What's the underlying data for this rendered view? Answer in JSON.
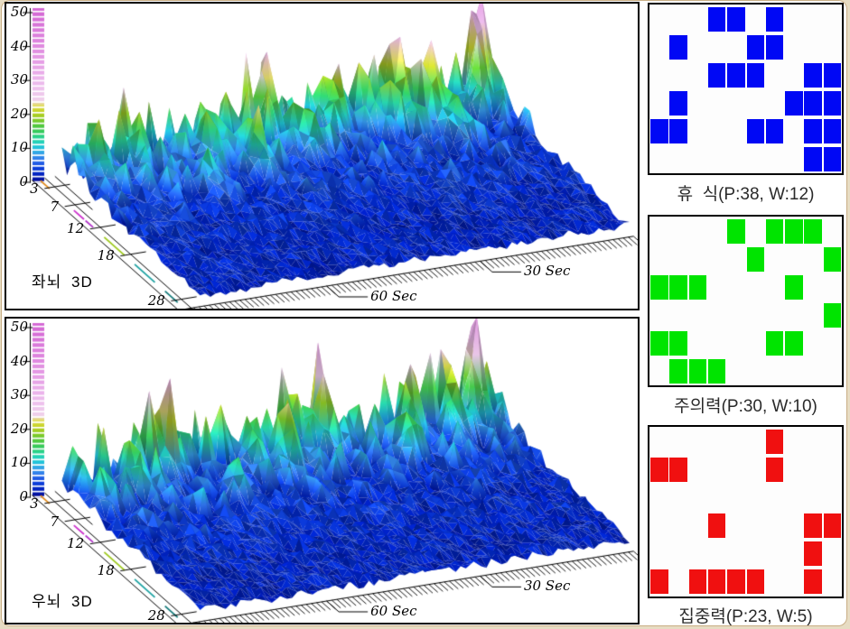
{
  "window": {
    "background": "#ffffff",
    "frame_color": "#e7dcc3",
    "frame_edge_color": "#c9ae85"
  },
  "colormap": [
    [
      0,
      "#000890"
    ],
    [
      2.5,
      "#0024C4"
    ],
    [
      4.5,
      "#1246E0"
    ],
    [
      6.5,
      "#3274EC"
    ],
    [
      8.5,
      "#38A4E8"
    ],
    [
      10.5,
      "#20C8D8"
    ],
    [
      12.5,
      "#28D8A8"
    ],
    [
      14.5,
      "#30CC64"
    ],
    [
      17,
      "#58C838"
    ],
    [
      19,
      "#96CC24"
    ],
    [
      21,
      "#C8D428"
    ],
    [
      22.5,
      "#E2DE5A"
    ],
    [
      24,
      "#F0D2EC"
    ],
    [
      28,
      "#EEC0EE"
    ],
    [
      34,
      "#E8A6E8"
    ],
    [
      42,
      "#DE84DE"
    ],
    [
      51,
      "#D466D4"
    ]
  ],
  "frequency_band_marks": [
    [
      1.4,
      3.2,
      "#E08818"
    ],
    [
      8,
      10,
      "#CC2FCC"
    ],
    [
      10.3,
      11.8,
      "#B032C8"
    ],
    [
      14,
      18,
      "#9CC818"
    ],
    [
      20,
      24,
      "#18A0A0"
    ],
    [
      26,
      28.5,
      "#107878"
    ]
  ],
  "chart_data": [
    {
      "id": "left-brain-3d",
      "type": "3d-surface",
      "title": "좌뇌 3D",
      "z_axis": {
        "range": [
          0,
          50
        ],
        "values": [
          50,
          40,
          30,
          20,
          10,
          0
        ],
        "tick_labels": [
          "50",
          "40",
          "30",
          "20",
          "10",
          "0"
        ]
      },
      "freq_axis": {
        "range_hz": [
          3,
          28
        ],
        "values": [
          3,
          7,
          12,
          18,
          28
        ],
        "tick_labels": [
          "3",
          "7",
          "12",
          "18",
          "28"
        ]
      },
      "time_axis": {
        "unit": "Sec",
        "values": [
          30,
          60
        ],
        "tick_labels": [
          "30 Sec",
          "60 Sec"
        ],
        "direction": "zero-at-right"
      },
      "surface_model": {
        "seed": 3,
        "nf": 26,
        "nw": 85,
        "envelope_falloff": 7,
        "peaks": [
          [
            1.3,
            4,
            30
          ],
          [
            3.2,
            15,
            15
          ],
          [
            1.8,
            20,
            17
          ],
          [
            5.5,
            13,
            11
          ],
          [
            2.2,
            33,
            12
          ],
          [
            4.5,
            40,
            13
          ],
          [
            1.2,
            45,
            14
          ],
          [
            6,
            52,
            11
          ],
          [
            3,
            58,
            10
          ],
          [
            7,
            63,
            9
          ],
          [
            2,
            72,
            9
          ],
          [
            4,
            80,
            8
          ]
        ]
      }
    },
    {
      "id": "right-brain-3d",
      "type": "3d-surface",
      "title": "우뇌 3D",
      "z_axis": {
        "range": [
          0,
          50
        ],
        "values": [
          50,
          40,
          30,
          20,
          10,
          0
        ],
        "tick_labels": [
          "50",
          "40",
          "30",
          "20",
          "10",
          "0"
        ]
      },
      "freq_axis": {
        "range_hz": [
          3,
          28
        ],
        "values": [
          3,
          7,
          12,
          18,
          28
        ],
        "tick_labels": [
          "3",
          "7",
          "12",
          "18",
          "28"
        ]
      },
      "time_axis": {
        "unit": "Sec",
        "values": [
          30,
          60
        ],
        "tick_labels": [
          "30 Sec",
          "60 Sec"
        ],
        "direction": "zero-at-right"
      },
      "surface_model": {
        "seed": 11,
        "nf": 26,
        "nw": 85,
        "envelope_falloff": 7,
        "peaks": [
          [
            1.4,
            5,
            28
          ],
          [
            2.8,
            10,
            14
          ],
          [
            2,
            18,
            13
          ],
          [
            5,
            22,
            11
          ],
          [
            1.5,
            35,
            13
          ],
          [
            4,
            44,
            12
          ],
          [
            2.5,
            50,
            11
          ],
          [
            6.5,
            57,
            9
          ],
          [
            1.5,
            65,
            10
          ],
          [
            3.5,
            74,
            9
          ],
          [
            5,
            82,
            8
          ]
        ]
      }
    },
    {
      "id": "rest-grid",
      "type": "heatmap",
      "title": "휴  식(P:38, W:12)",
      "cell_color": "#0008F5",
      "rows": 6,
      "cols": 10,
      "matrix": [
        [
          0,
          0,
          0,
          1,
          1,
          0,
          1,
          0,
          0,
          0
        ],
        [
          0,
          1,
          0,
          0,
          0,
          1,
          1,
          0,
          0,
          0
        ],
        [
          0,
          0,
          0,
          1,
          1,
          1,
          0,
          0,
          1,
          1
        ],
        [
          0,
          1,
          0,
          0,
          0,
          0,
          0,
          1,
          1,
          1
        ],
        [
          1,
          1,
          0,
          0,
          0,
          1,
          1,
          0,
          1,
          1
        ],
        [
          0,
          0,
          0,
          0,
          0,
          0,
          0,
          0,
          1,
          1
        ]
      ]
    },
    {
      "id": "attention-grid",
      "type": "heatmap",
      "title": "주의력(P:30, W:10)",
      "cell_color": "#00E400",
      "rows": 6,
      "cols": 10,
      "matrix": [
        [
          0,
          0,
          0,
          0,
          1,
          0,
          1,
          1,
          1,
          0
        ],
        [
          0,
          0,
          0,
          0,
          0,
          1,
          0,
          0,
          0,
          1
        ],
        [
          1,
          1,
          1,
          0,
          0,
          0,
          0,
          1,
          0,
          0
        ],
        [
          0,
          0,
          0,
          0,
          0,
          0,
          0,
          0,
          0,
          1
        ],
        [
          1,
          1,
          0,
          0,
          0,
          0,
          1,
          1,
          0,
          0
        ],
        [
          0,
          1,
          1,
          1,
          0,
          0,
          0,
          0,
          0,
          0
        ]
      ]
    },
    {
      "id": "concentration-grid",
      "type": "heatmap",
      "title": "집중력(P:23, W:5)",
      "cell_color": "#F01010",
      "rows": 6,
      "cols": 10,
      "matrix": [
        [
          0,
          0,
          0,
          0,
          0,
          0,
          1,
          0,
          0,
          0
        ],
        [
          1,
          1,
          0,
          0,
          0,
          0,
          1,
          0,
          0,
          0
        ],
        [
          0,
          0,
          0,
          0,
          0,
          0,
          0,
          0,
          0,
          0
        ],
        [
          0,
          0,
          0,
          1,
          0,
          0,
          0,
          0,
          1,
          1
        ],
        [
          0,
          0,
          0,
          0,
          0,
          0,
          0,
          0,
          1,
          0
        ],
        [
          1,
          0,
          1,
          1,
          1,
          1,
          0,
          0,
          1,
          0
        ]
      ]
    }
  ]
}
